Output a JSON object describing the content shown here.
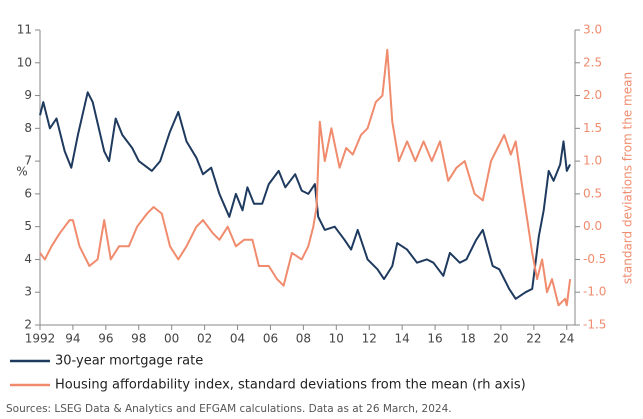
{
  "chart_data": {
    "type": "line",
    "ylabel": "%",
    "y2label": "standard deviations from the mean",
    "source": "Sources: LSEG Data & Analytics and EFGAM calculations. Data as at 26 March, 2024.",
    "xlim": [
      1992,
      2024.5
    ],
    "xticks": [
      {
        "value": 1992,
        "label": "1992"
      },
      {
        "value": 1994,
        "label": "94"
      },
      {
        "value": 1996,
        "label": "96"
      },
      {
        "value": 1998,
        "label": "98"
      },
      {
        "value": 2000,
        "label": "00"
      },
      {
        "value": 2002,
        "label": "02"
      },
      {
        "value": 2004,
        "label": "04"
      },
      {
        "value": 2006,
        "label": "06"
      },
      {
        "value": 2008,
        "label": "08"
      },
      {
        "value": 2010,
        "label": "10"
      },
      {
        "value": 2012,
        "label": "12"
      },
      {
        "value": 2014,
        "label": "14"
      },
      {
        "value": 2016,
        "label": "16"
      },
      {
        "value": 2018,
        "label": "18"
      },
      {
        "value": 2020,
        "label": "20"
      },
      {
        "value": 2022,
        "label": "22"
      },
      {
        "value": 2024,
        "label": "24"
      }
    ],
    "ylim": [
      2,
      11
    ],
    "yticks": [
      2,
      3,
      4,
      5,
      6,
      7,
      8,
      9,
      10,
      11
    ],
    "y2lim": [
      -1.5,
      3.0
    ],
    "y2ticks": [
      {
        "value": -1.5,
        "label": "-1.5"
      },
      {
        "value": -1.0,
        "label": "-1.0"
      },
      {
        "value": -0.5,
        "label": "-0.5"
      },
      {
        "value": 0,
        "label": "0.0"
      },
      {
        "value": 0.5,
        "label": "0.5"
      },
      {
        "value": 1.0,
        "label": "1.0"
      },
      {
        "value": 1.5,
        "label": "1.5"
      },
      {
        "value": 2.0,
        "label": "2.0"
      },
      {
        "value": 2.5,
        "label": "2.5"
      },
      {
        "value": 3.0,
        "label": "3.0"
      }
    ],
    "series": [
      {
        "name": "30-year mortgage rate",
        "color": "#1f3a5f",
        "x": [
          1992.0,
          1992.2,
          1992.6,
          1993.0,
          1993.5,
          1993.9,
          1994.3,
          1994.9,
          1995.2,
          1995.9,
          1996.2,
          1996.6,
          1997.0,
          1997.6,
          1998.0,
          1998.8,
          1999.3,
          1999.9,
          2000.4,
          2000.9,
          2001.5,
          2001.9,
          2002.4,
          2002.9,
          2003.5,
          2003.9,
          2004.3,
          2004.6,
          2005.0,
          2005.5,
          2005.9,
          2006.5,
          2006.9,
          2007.5,
          2007.9,
          2008.3,
          2008.7,
          2008.9,
          2009.3,
          2009.9,
          2010.5,
          2010.9,
          2011.3,
          2011.9,
          2012.5,
          2012.9,
          2013.4,
          2013.7,
          2014.3,
          2014.9,
          2015.5,
          2015.9,
          2016.5,
          2016.9,
          2017.5,
          2017.9,
          2018.5,
          2018.9,
          2019.5,
          2019.9,
          2020.5,
          2020.9,
          2021.5,
          2021.9,
          2022.3,
          2022.6,
          2022.9,
          2023.2,
          2023.6,
          2023.8,
          2024.0,
          2024.2
        ],
        "values": [
          8.4,
          8.8,
          8.0,
          8.3,
          7.3,
          6.8,
          7.8,
          9.1,
          8.8,
          7.3,
          7.0,
          8.3,
          7.8,
          7.4,
          7.0,
          6.7,
          7.0,
          7.9,
          8.5,
          7.6,
          7.1,
          6.6,
          6.8,
          6.0,
          5.3,
          6.0,
          5.5,
          6.2,
          5.7,
          5.7,
          6.3,
          6.7,
          6.2,
          6.6,
          6.1,
          6.0,
          6.3,
          5.3,
          4.9,
          5.0,
          4.6,
          4.3,
          4.9,
          4.0,
          3.7,
          3.4,
          3.8,
          4.5,
          4.3,
          3.9,
          4.0,
          3.9,
          3.5,
          4.2,
          3.9,
          4.0,
          4.6,
          4.9,
          3.8,
          3.7,
          3.1,
          2.8,
          3.0,
          3.1,
          4.7,
          5.5,
          6.7,
          6.4,
          6.9,
          7.6,
          6.7,
          6.9
        ]
      },
      {
        "name": "Housing affordability index, standard deviations from the mean (rh axis)",
        "color": "#f08b6e",
        "axis": "y2",
        "x": [
          1992.0,
          1992.3,
          1992.7,
          1993.2,
          1993.8,
          1994.0,
          1994.4,
          1995.0,
          1995.5,
          1995.9,
          1996.3,
          1996.8,
          1997.4,
          1997.9,
          1998.5,
          1998.9,
          1999.4,
          1999.9,
          2000.4,
          2000.9,
          2001.5,
          2001.9,
          2002.5,
          2002.9,
          2003.4,
          2003.9,
          2004.4,
          2004.9,
          2005.3,
          2005.9,
          2006.4,
          2006.8,
          2007.3,
          2007.9,
          2008.3,
          2008.6,
          2008.8,
          2009.0,
          2009.3,
          2009.7,
          2010.2,
          2010.6,
          2011.0,
          2011.5,
          2011.9,
          2012.4,
          2012.8,
          2013.1,
          2013.4,
          2013.8,
          2014.3,
          2014.8,
          2015.3,
          2015.8,
          2016.3,
          2016.8,
          2017.3,
          2017.8,
          2018.4,
          2018.9,
          2019.4,
          2019.8,
          2020.2,
          2020.6,
          2020.9,
          2021.3,
          2021.6,
          2021.9,
          2022.2,
          2022.5,
          2022.8,
          2023.1,
          2023.5,
          2023.9,
          2024.0,
          2024.2
        ],
        "values": [
          -0.4,
          -0.5,
          -0.3,
          -0.1,
          0.1,
          0.1,
          -0.3,
          -0.6,
          -0.5,
          0.1,
          -0.5,
          -0.3,
          -0.3,
          0.0,
          0.2,
          0.3,
          0.2,
          -0.3,
          -0.5,
          -0.3,
          0.0,
          0.1,
          -0.1,
          -0.2,
          0.0,
          -0.3,
          -0.2,
          -0.2,
          -0.6,
          -0.6,
          -0.8,
          -0.9,
          -0.4,
          -0.5,
          -0.3,
          0.0,
          0.3,
          1.6,
          1.0,
          1.5,
          0.9,
          1.2,
          1.1,
          1.4,
          1.5,
          1.9,
          2.0,
          2.7,
          1.6,
          1.0,
          1.3,
          1.0,
          1.3,
          1.0,
          1.3,
          0.7,
          0.9,
          1.0,
          0.5,
          0.4,
          1.0,
          1.2,
          1.4,
          1.1,
          1.3,
          0.6,
          0.1,
          -0.4,
          -0.8,
          -0.5,
          -1.0,
          -0.8,
          -1.2,
          -1.1,
          -1.2,
          -0.8
        ]
      }
    ]
  }
}
